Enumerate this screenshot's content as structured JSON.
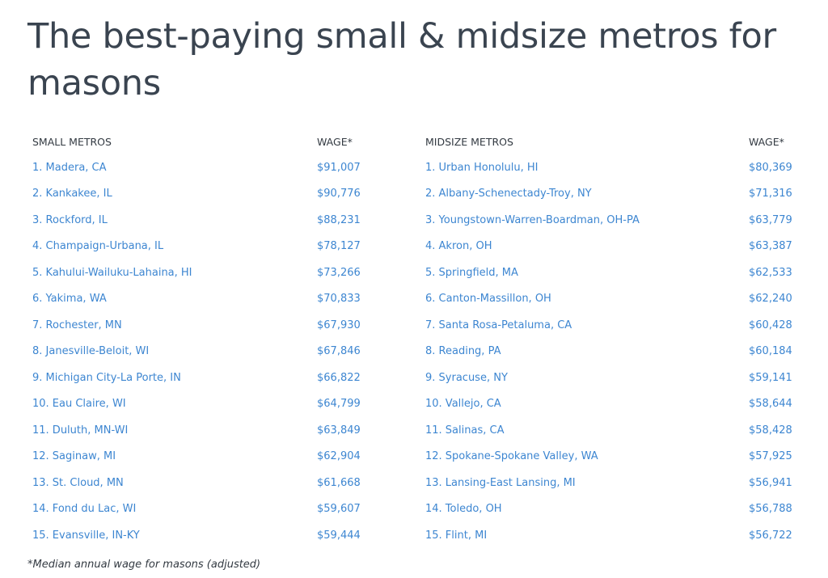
{
  "title": "The best-paying small & midsize metros for masons",
  "small": {
    "header_city": "SMALL METROS",
    "header_wage": "WAGE*",
    "rows": [
      {
        "city": "1. Madera, CA",
        "wage": "$91,007"
      },
      {
        "city": "2. Kankakee, IL",
        "wage": "$90,776"
      },
      {
        "city": "3. Rockford, IL",
        "wage": "$88,231"
      },
      {
        "city": "4. Champaign-Urbana, IL",
        "wage": "$78,127"
      },
      {
        "city": "5. Kahului-Wailuku-Lahaina, HI",
        "wage": "$73,266"
      },
      {
        "city": "6. Yakima, WA",
        "wage": "$70,833"
      },
      {
        "city": "7. Rochester, MN",
        "wage": "$67,930"
      },
      {
        "city": "8. Janesville-Beloit, WI",
        "wage": "$67,846"
      },
      {
        "city": "9. Michigan City-La Porte, IN",
        "wage": "$66,822"
      },
      {
        "city": "10. Eau Claire, WI",
        "wage": "$64,799"
      },
      {
        "city": "11. Duluth, MN-WI",
        "wage": "$63,849"
      },
      {
        "city": "12. Saginaw, MI",
        "wage": "$62,904"
      },
      {
        "city": "13. St. Cloud, MN",
        "wage": "$61,668"
      },
      {
        "city": "14. Fond du Lac, WI",
        "wage": "$59,607"
      },
      {
        "city": "15. Evansville, IN-KY",
        "wage": "$59,444"
      }
    ]
  },
  "midsize": {
    "header_city": "MIDSIZE METROS",
    "header_wage": "WAGE*",
    "rows": [
      {
        "city": "1. Urban Honolulu, HI",
        "wage": "$80,369"
      },
      {
        "city": "2. Albany-Schenectady-Troy, NY",
        "wage": "$71,316"
      },
      {
        "city": "3. Youngstown-Warren-Boardman, OH-PA",
        "wage": "$63,779"
      },
      {
        "city": "4. Akron, OH",
        "wage": "$63,387"
      },
      {
        "city": "5. Springfield, MA",
        "wage": "$62,533"
      },
      {
        "city": "6. Canton-Massillon, OH",
        "wage": "$62,240"
      },
      {
        "city": "7. Santa Rosa-Petaluma, CA",
        "wage": "$60,428"
      },
      {
        "city": "8. Reading, PA",
        "wage": "$60,184"
      },
      {
        "city": "9. Syracuse, NY",
        "wage": "$59,141"
      },
      {
        "city": "10. Vallejo, CA",
        "wage": "$58,644"
      },
      {
        "city": "11. Salinas, CA",
        "wage": "$58,428"
      },
      {
        "city": "12. Spokane-Spokane Valley, WA",
        "wage": "$57,925"
      },
      {
        "city": "13. Lansing-East Lansing, MI",
        "wage": "$56,941"
      },
      {
        "city": "14. Toledo, OH",
        "wage": "$56,788"
      },
      {
        "city": "15. Flint, MI",
        "wage": "$56,722"
      }
    ]
  },
  "footnote": "*Median annual wage for masons (adjusted)"
}
